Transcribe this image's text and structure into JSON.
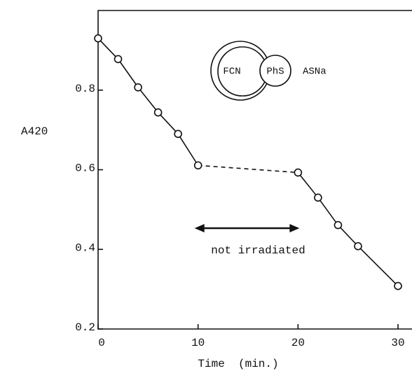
{
  "chart_data": {
    "type": "line",
    "x_label": "Time  (min.)",
    "y_label": "A420",
    "x": [
      0,
      2,
      4,
      6,
      8,
      10,
      20,
      22,
      24,
      26,
      30
    ],
    "values": [
      0.93,
      0.878,
      0.807,
      0.744,
      0.69,
      0.611,
      0.593,
      0.53,
      0.461,
      0.408,
      0.308
    ],
    "dashed_x_range": [
      10,
      20
    ],
    "color": "#111111",
    "xlim": [
      0,
      31.4
    ],
    "ylim": [
      0.2,
      1.0
    ],
    "xticks": [
      0,
      10,
      20,
      30
    ],
    "yticks": [
      0.2,
      0.4,
      0.6,
      0.8
    ],
    "annotations": {
      "arrow_label": "not irradiated",
      "inset": [
        "FCN",
        "PhS",
        "ASNa"
      ]
    }
  }
}
